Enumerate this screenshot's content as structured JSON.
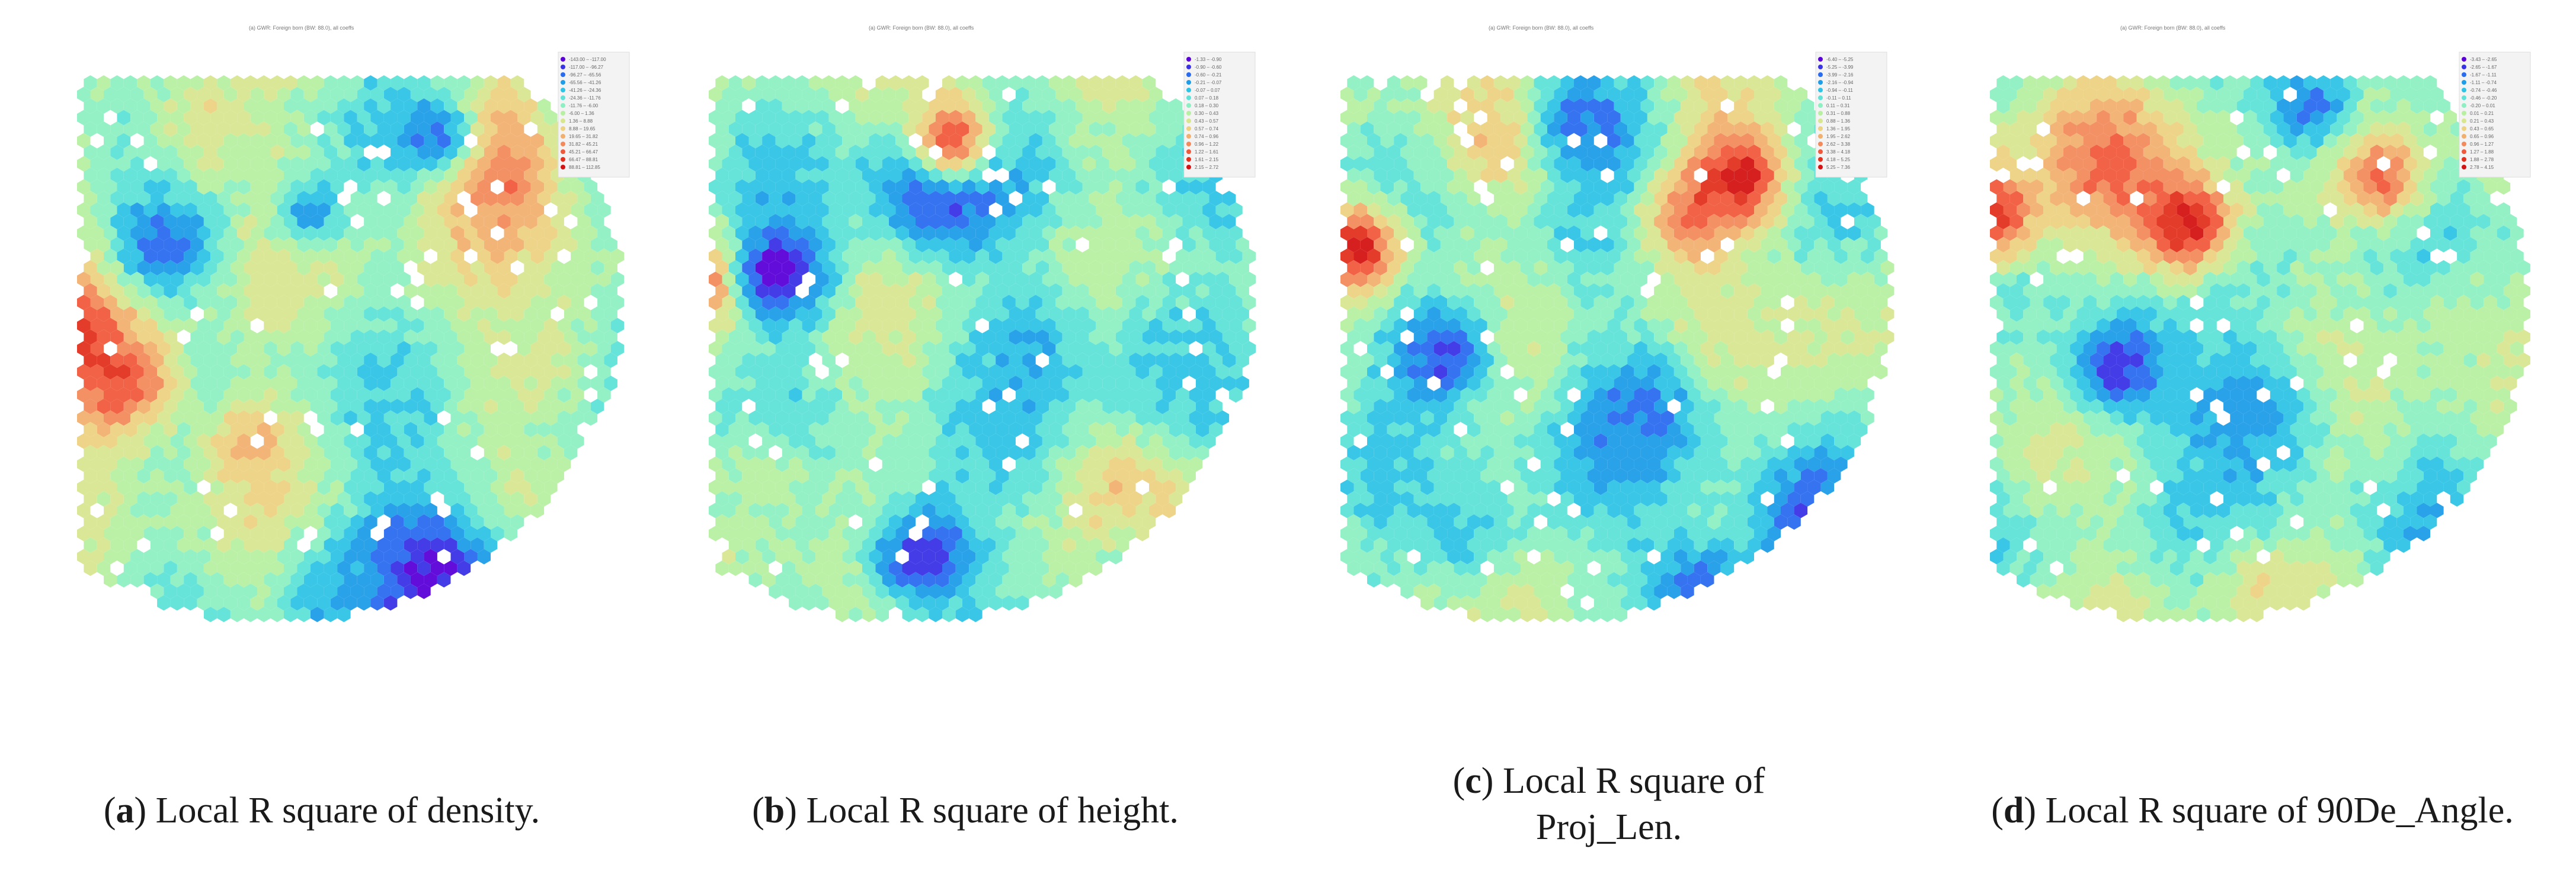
{
  "figure": {
    "panels": [
      {
        "id": "a",
        "caption_letter": "a",
        "caption_text": "Local R square of density.",
        "map_title": "(a) GWR: Foreign born (BW: 88.0), all coeffs",
        "legend_labels": [
          "-143.00 – -117.00",
          "-117.00 – -96.27",
          "-96.27 – -65.56",
          "-65.56 – -41.26",
          "-41.26 – -24.36",
          "-24.36 – -11.76",
          "-11.76 – -6.00",
          "-6.00 – 1.36",
          "1.36 – 8.88",
          "8.88 – 19.65",
          "19.65 – 31.82",
          "31.82 – 45.21",
          "45.21 – 66.47",
          "66.47 – 88.81",
          "88.81 – 112.85"
        ]
      },
      {
        "id": "b",
        "caption_letter": "b",
        "caption_text": "Local R square of height.",
        "map_title": "(a) GWR: Foreign born (BW: 88.0), all coeffs",
        "legend_labels": [
          "-1.33 – -0.90",
          "-0.90 – -0.60",
          "-0.60 – -0.21",
          "-0.21 – -0.07",
          "-0.07 – 0.07",
          "0.07 – 0.18",
          "0.18 – 0.30",
          "0.30 – 0.43",
          "0.43 – 0.57",
          "0.57 – 0.74",
          "0.74 – 0.96",
          "0.96 – 1.22",
          "1.22 – 1.61",
          "1.61 – 2.15",
          "2.15 – 2.72"
        ]
      },
      {
        "id": "c",
        "caption_letter": "c",
        "caption_text": "Local R square of Proj_Len.",
        "caption_line1": "Local R square of",
        "caption_line2": "Proj_Len.",
        "map_title": "(a) GWR: Foreign born (BW: 88.0), all coeffs",
        "legend_labels": [
          "-6.40 – -5.25",
          "-5.25 – -3.99",
          "-3.99 – -2.16",
          "-2.16 – -0.94",
          "-0.94 – -0.11",
          "-0.11 – 0.11",
          "0.11 – 0.31",
          "0.31 – 0.88",
          "0.88 – 1.36",
          "1.36 – 1.95",
          "1.95 – 2.62",
          "2.62 – 3.38",
          "3.38 – 4.18",
          "4.18 – 5.25",
          "5.25 – 7.36"
        ]
      },
      {
        "id": "d",
        "caption_letter": "d",
        "caption_text": "Local R square of 90De_Angle.",
        "map_title": "(a) GWR: Foreign born (BW: 88.0), all coeffs",
        "legend_labels": [
          "-3.43 – -2.65",
          "-2.65 – -1.67",
          "-1.67 – -1.11",
          "-1.11 – -0.74",
          "-0.74 – -0.46",
          "-0.46 – -0.20",
          "-0.20 – 0.01",
          "0.01 – 0.21",
          "0.21 – 0.43",
          "0.43 – 0.65",
          "0.65 – 0.96",
          "0.96 – 1.27",
          "1.27 – 1.88",
          "1.88 – 2.78",
          "2.78 – 4.15"
        ]
      }
    ],
    "legend_colors": [
      "#5b00d9",
      "#3a33e6",
      "#2a6cf0",
      "#1f9de8",
      "#2fc4e6",
      "#5fe3d8",
      "#8ef0c2",
      "#b7f0a2",
      "#d8e690",
      "#ecd282",
      "#f2b070",
      "#f28a5c",
      "#f05a3c",
      "#e2321f",
      "#d41414"
    ]
  }
}
